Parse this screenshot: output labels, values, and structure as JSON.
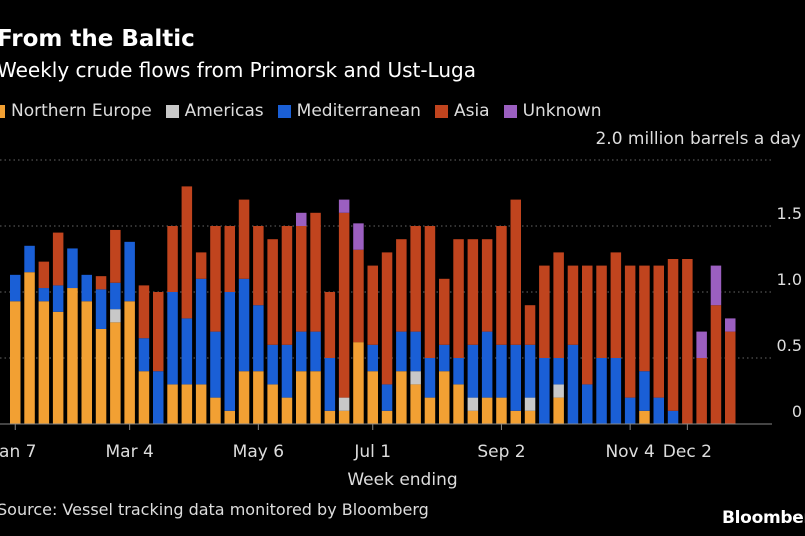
{
  "chart_data": {
    "type": "bar",
    "stacked": true,
    "title": "From the Baltic",
    "subtitle": "Weekly crude flows from Primorsk and Ust-Luga",
    "unit_label": "2.0 million barrels a day",
    "xlabel": "Week ending",
    "ylim": [
      0,
      2.0
    ],
    "yticks": [
      {
        "value": 0,
        "label": "0"
      },
      {
        "value": 0.5,
        "label": "0.5"
      },
      {
        "value": 1.0,
        "label": "1.0"
      },
      {
        "value": 1.5,
        "label": "1.5"
      },
      {
        "value": 2.0,
        "label": ""
      }
    ],
    "xticks": [
      {
        "index": 0,
        "label": "Jan 7"
      },
      {
        "index": 8,
        "label": "Mar 4"
      },
      {
        "index": 17,
        "label": "May 6"
      },
      {
        "index": 25,
        "label": "Jul 1"
      },
      {
        "index": 34,
        "label": "Sep 2"
      },
      {
        "index": 43,
        "label": "Nov 4"
      },
      {
        "index": 47,
        "label": "Dec 2"
      }
    ],
    "grid": true,
    "legend_position": "top",
    "num_weeks": 52,
    "series": [
      {
        "name": "Northern Europe",
        "color": "#f2a033",
        "values": [
          0.93,
          1.15,
          0.93,
          0.85,
          1.03,
          0.93,
          0.72,
          0.77,
          0.93,
          0.4,
          0,
          0.3,
          0.3,
          0.3,
          0.2,
          0.1,
          0.4,
          0.4,
          0.3,
          0.2,
          0.4,
          0.4,
          0.1,
          0.1,
          0.62,
          0.4,
          0.1,
          0.4,
          0.3,
          0.2,
          0.4,
          0.3,
          0.1,
          0.2,
          0.2,
          0.1,
          0.1,
          0,
          0.2,
          0,
          0,
          0,
          0,
          0,
          0.1,
          0,
          0,
          0,
          0,
          0,
          0,
          0
        ]
      },
      {
        "name": "Americas",
        "color": "#c8c8c8",
        "values": [
          0,
          0,
          0,
          0,
          0,
          0,
          0,
          0.1,
          0,
          0,
          0,
          0,
          0,
          0,
          0,
          0,
          0,
          0,
          0,
          0,
          0,
          0,
          0,
          0.1,
          0,
          0,
          0,
          0,
          0.1,
          0,
          0,
          0,
          0.1,
          0,
          0,
          0,
          0.1,
          0,
          0.1,
          0,
          0,
          0,
          0,
          0,
          0,
          0,
          0,
          0,
          0,
          0,
          0,
          0
        ]
      },
      {
        "name": "Mediterranean",
        "color": "#1a5fd6",
        "values": [
          0.2,
          0.2,
          0.1,
          0.2,
          0.3,
          0.2,
          0.3,
          0.2,
          0.45,
          0.25,
          0.4,
          0.7,
          0.5,
          0.8,
          0.5,
          0.9,
          0.7,
          0.5,
          0.3,
          0.4,
          0.3,
          0.3,
          0.4,
          0,
          0,
          0.2,
          0.2,
          0.3,
          0.3,
          0.3,
          0.2,
          0.2,
          0.4,
          0.5,
          0.4,
          0.5,
          0.4,
          0.5,
          0.2,
          0.6,
          0.3,
          0.5,
          0.5,
          0.2,
          0.3,
          0.2,
          0.1,
          0,
          0,
          0,
          0,
          0
        ]
      },
      {
        "name": "Asia",
        "color": "#c0441e",
        "values": [
          0,
          0,
          0.2,
          0.4,
          0,
          0,
          0.1,
          0.4,
          0,
          0.4,
          0.6,
          0.5,
          1.0,
          0.2,
          0.8,
          0.5,
          0.6,
          0.6,
          0.8,
          0.9,
          0.8,
          0.9,
          0.5,
          1.4,
          0.7,
          0.6,
          1.0,
          0.7,
          0.8,
          1.0,
          0.5,
          0.9,
          0.8,
          0.7,
          0.9,
          1.1,
          0.3,
          0.7,
          0.8,
          0.6,
          0.9,
          0.7,
          0.8,
          1.0,
          0.8,
          1.0,
          1.15,
          1.25,
          0.5,
          0.9,
          0.7,
          0
        ]
      },
      {
        "name": "Unknown",
        "color": "#9b5fc0",
        "values": [
          0,
          0,
          0,
          0,
          0,
          0,
          0,
          0,
          0,
          0,
          0,
          0,
          0,
          0,
          0,
          0,
          0,
          0,
          0,
          0,
          0.1,
          0,
          0,
          0.1,
          0.2,
          0,
          0,
          0,
          0,
          0,
          0,
          0,
          0,
          0,
          0,
          0,
          0,
          0,
          0,
          0,
          0,
          0,
          0,
          0,
          0,
          0,
          0,
          0,
          0.2,
          0.3,
          0.1,
          0
        ]
      }
    ]
  },
  "footer": {
    "source": "Source: Vessel tracking data monitored by Bloomberg",
    "logo": "Bloomberg"
  },
  "colors": {
    "background": "#000000",
    "grid": "#666666",
    "text": "#dddddd"
  }
}
